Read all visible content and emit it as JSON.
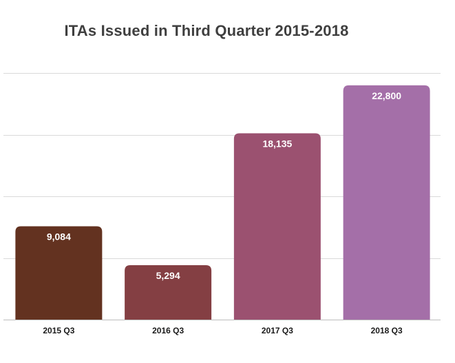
{
  "chart_data": {
    "type": "bar",
    "title": "ITAs Issued in Third Quarter 2015-2018",
    "categories": [
      "2015 Q3",
      "2016 Q3",
      "2017 Q3",
      "2018 Q3"
    ],
    "values": [
      9084,
      5294,
      18135,
      22800
    ],
    "value_labels": [
      "9,084",
      "5,294",
      "18,135",
      "22,800"
    ],
    "colors": [
      "#633220",
      "#843f43",
      "#9b5170",
      "#a46fa8"
    ],
    "xlabel": "",
    "ylabel": "",
    "ylim": [
      0,
      24000
    ],
    "grid": true,
    "legend": "none"
  }
}
